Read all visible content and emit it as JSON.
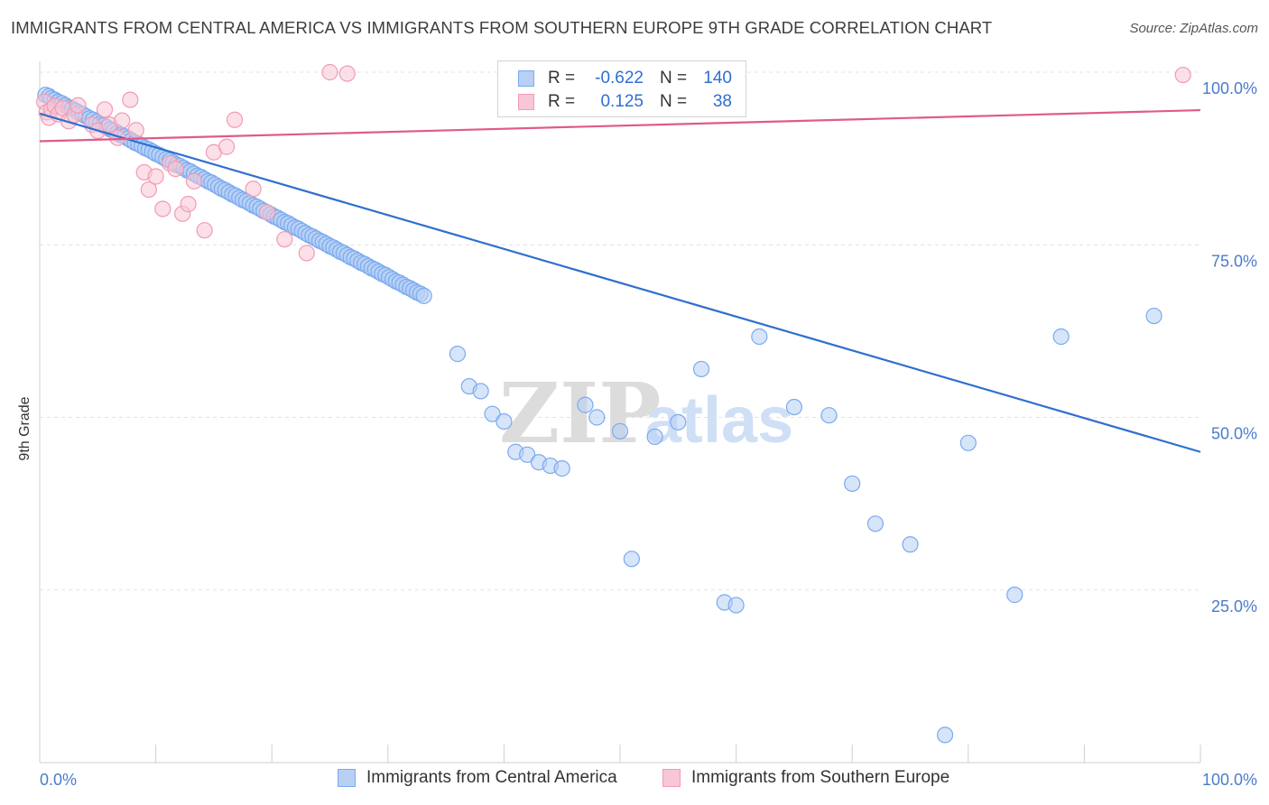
{
  "title": "IMMIGRANTS FROM CENTRAL AMERICA VS IMMIGRANTS FROM SOUTHERN EUROPE 9TH GRADE CORRELATION CHART",
  "source": "Source: ZipAtlas.com",
  "watermark": {
    "zip": "ZIP",
    "atlas": "atlas"
  },
  "legend": {
    "rows": [
      {
        "r_label": "R =",
        "r_value": "-0.622",
        "n_label": "N =",
        "n_value": "140"
      },
      {
        "r_label": "R =",
        "r_value": "0.125",
        "n_label": "N =",
        "n_value": "38"
      }
    ]
  },
  "chart_data": {
    "type": "scatter",
    "xlabel": "",
    "ylabel": "9th Grade",
    "xlim": [
      0,
      100
    ],
    "ylim": [
      0,
      100
    ],
    "x_tick_labels": [
      {
        "x": 0,
        "label": "0.0%"
      },
      {
        "x": 100,
        "label": "100.0%"
      }
    ],
    "y_tick_labels": [
      {
        "y": 100,
        "label": "100.0%"
      },
      {
        "y": 75,
        "label": "75.0%"
      },
      {
        "y": 50,
        "label": "50.0%"
      },
      {
        "y": 25,
        "label": "25.0%"
      }
    ],
    "grid": "horizontal dashed",
    "legend_position": "top-center",
    "series": [
      {
        "name": "Immigrants from Central America",
        "color": "#7aaaf0",
        "fill": "#b7d0f4",
        "line_color": "#2e6fcf",
        "r": -0.622,
        "n": 140,
        "trend": {
          "x": [
            0,
            100
          ],
          "y": [
            94,
            45
          ]
        },
        "points": [
          [
            0.5,
            96.7
          ],
          [
            0.8,
            96.5
          ],
          [
            1.0,
            96.2
          ],
          [
            1.3,
            96.0
          ],
          [
            1.6,
            95.7
          ],
          [
            1.9,
            95.5
          ],
          [
            2.2,
            95.2
          ],
          [
            2.5,
            94.9
          ],
          [
            2.8,
            94.7
          ],
          [
            3.1,
            94.4
          ],
          [
            3.4,
            94.1
          ],
          [
            3.7,
            93.9
          ],
          [
            4.0,
            93.6
          ],
          [
            4.3,
            93.3
          ],
          [
            4.6,
            93.1
          ],
          [
            4.9,
            92.8
          ],
          [
            5.2,
            92.5
          ],
          [
            5.5,
            92.3
          ],
          [
            5.8,
            92.0
          ],
          [
            6.1,
            91.7
          ],
          [
            6.4,
            91.5
          ],
          [
            6.7,
            91.2
          ],
          [
            7.0,
            90.9
          ],
          [
            7.3,
            90.7
          ],
          [
            7.6,
            90.4
          ],
          [
            7.9,
            90.1
          ],
          [
            8.2,
            89.8
          ],
          [
            8.5,
            89.6
          ],
          [
            8.8,
            89.3
          ],
          [
            9.1,
            89.0
          ],
          [
            9.4,
            88.8
          ],
          [
            9.7,
            88.5
          ],
          [
            10.0,
            88.2
          ],
          [
            10.3,
            88.0
          ],
          [
            10.6,
            87.7
          ],
          [
            10.9,
            87.4
          ],
          [
            11.2,
            87.2
          ],
          [
            11.5,
            86.9
          ],
          [
            11.8,
            86.6
          ],
          [
            12.1,
            86.4
          ],
          [
            12.4,
            86.1
          ],
          [
            12.7,
            85.8
          ],
          [
            13.0,
            85.6
          ],
          [
            13.3,
            85.3
          ],
          [
            13.6,
            85.0
          ],
          [
            13.9,
            84.8
          ],
          [
            14.2,
            84.5
          ],
          [
            14.5,
            84.2
          ],
          [
            14.8,
            84.0
          ],
          [
            15.1,
            83.7
          ],
          [
            15.4,
            83.4
          ],
          [
            15.7,
            83.1
          ],
          [
            16.0,
            82.9
          ],
          [
            16.3,
            82.6
          ],
          [
            16.6,
            82.3
          ],
          [
            16.9,
            82.1
          ],
          [
            17.2,
            81.8
          ],
          [
            17.5,
            81.5
          ],
          [
            17.8,
            81.3
          ],
          [
            18.1,
            81.0
          ],
          [
            18.4,
            80.7
          ],
          [
            18.7,
            80.5
          ],
          [
            19.0,
            80.2
          ],
          [
            19.3,
            79.9
          ],
          [
            19.6,
            79.7
          ],
          [
            19.9,
            79.4
          ],
          [
            20.2,
            79.1
          ],
          [
            20.5,
            78.9
          ],
          [
            20.8,
            78.6
          ],
          [
            21.1,
            78.3
          ],
          [
            21.4,
            78.1
          ],
          [
            21.7,
            77.8
          ],
          [
            22.0,
            77.5
          ],
          [
            22.3,
            77.3
          ],
          [
            22.6,
            77.0
          ],
          [
            22.9,
            76.7
          ],
          [
            23.2,
            76.4
          ],
          [
            23.5,
            76.2
          ],
          [
            23.8,
            75.9
          ],
          [
            24.1,
            75.6
          ],
          [
            24.4,
            75.4
          ],
          [
            24.7,
            75.1
          ],
          [
            25.0,
            74.8
          ],
          [
            25.3,
            74.6
          ],
          [
            25.6,
            74.3
          ],
          [
            25.9,
            74.0
          ],
          [
            26.2,
            73.8
          ],
          [
            26.5,
            73.5
          ],
          [
            26.8,
            73.2
          ],
          [
            27.1,
            73.0
          ],
          [
            27.4,
            72.7
          ],
          [
            27.7,
            72.4
          ],
          [
            28.0,
            72.2
          ],
          [
            28.3,
            71.9
          ],
          [
            28.6,
            71.6
          ],
          [
            28.9,
            71.4
          ],
          [
            29.2,
            71.1
          ],
          [
            29.5,
            70.8
          ],
          [
            29.8,
            70.6
          ],
          [
            30.1,
            70.3
          ],
          [
            30.4,
            70.0
          ],
          [
            30.7,
            69.7
          ],
          [
            31.0,
            69.5
          ],
          [
            31.3,
            69.2
          ],
          [
            31.6,
            68.9
          ],
          [
            31.9,
            68.7
          ],
          [
            32.2,
            68.4
          ],
          [
            32.5,
            68.1
          ],
          [
            32.8,
            67.9
          ],
          [
            33.1,
            67.6
          ],
          [
            36,
            59.2
          ],
          [
            37,
            54.5
          ],
          [
            38,
            53.8
          ],
          [
            39,
            50.5
          ],
          [
            40,
            49.4
          ],
          [
            41,
            45.0
          ],
          [
            42,
            44.6
          ],
          [
            43,
            43.5
          ],
          [
            44,
            43.0
          ],
          [
            45,
            42.6
          ],
          [
            47,
            51.8
          ],
          [
            48,
            50.0
          ],
          [
            50,
            48.0
          ],
          [
            51,
            29.5
          ],
          [
            53,
            47.2
          ],
          [
            55,
            49.3
          ],
          [
            57,
            57.0
          ],
          [
            59,
            23.2
          ],
          [
            60,
            22.8
          ],
          [
            62,
            61.7
          ],
          [
            65,
            51.5
          ],
          [
            68,
            50.3
          ],
          [
            70,
            40.4
          ],
          [
            72,
            34.6
          ],
          [
            75,
            31.6
          ],
          [
            78,
            4.0
          ],
          [
            80,
            46.3
          ],
          [
            84,
            24.3
          ],
          [
            88,
            61.7
          ],
          [
            96,
            64.7
          ]
        ]
      },
      {
        "name": "Immigrants from Southern Europe",
        "color": "#f29ab5",
        "fill": "#f8c6d6",
        "line_color": "#e05a8a",
        "r": 0.125,
        "n": 38,
        "trend": {
          "x": [
            0,
            100
          ],
          "y": [
            90,
            94.5
          ]
        },
        "points": [
          [
            0.4,
            95.7
          ],
          [
            0.6,
            94.2
          ],
          [
            0.8,
            93.4
          ],
          [
            1.0,
            94.6
          ],
          [
            1.3,
            95.1
          ],
          [
            1.6,
            93.9
          ],
          [
            2.0,
            94.8
          ],
          [
            2.5,
            92.9
          ],
          [
            3.0,
            93.8
          ],
          [
            3.3,
            95.2
          ],
          [
            4.5,
            92.4
          ],
          [
            5.0,
            91.5
          ],
          [
            5.6,
            94.6
          ],
          [
            6.0,
            92.4
          ],
          [
            6.7,
            90.5
          ],
          [
            7.1,
            93.0
          ],
          [
            7.8,
            96.0
          ],
          [
            8.3,
            91.6
          ],
          [
            9.0,
            85.5
          ],
          [
            9.4,
            83.0
          ],
          [
            10.0,
            84.9
          ],
          [
            10.6,
            80.2
          ],
          [
            11.2,
            86.8
          ],
          [
            11.7,
            86.0
          ],
          [
            12.3,
            79.5
          ],
          [
            12.8,
            80.9
          ],
          [
            13.3,
            84.2
          ],
          [
            14.2,
            77.1
          ],
          [
            15.0,
            88.4
          ],
          [
            16.1,
            89.2
          ],
          [
            16.8,
            93.1
          ],
          [
            18.4,
            83.1
          ],
          [
            19.6,
            79.7
          ],
          [
            21.1,
            75.8
          ],
          [
            23.0,
            73.8
          ],
          [
            25.0,
            100.0
          ],
          [
            26.5,
            99.8
          ],
          [
            98.5,
            99.6
          ]
        ]
      }
    ]
  }
}
